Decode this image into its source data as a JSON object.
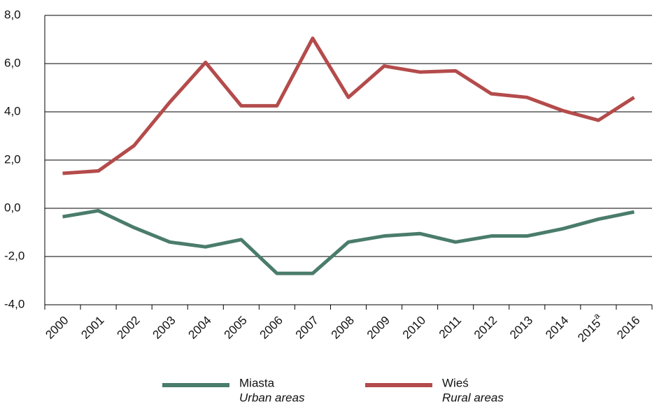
{
  "chart_data": {
    "type": "line",
    "categories": [
      "2000",
      "2001",
      "2002",
      "2003",
      "2004",
      "2005",
      "2006",
      "2007",
      "2008",
      "2009",
      "2010",
      "2011",
      "2012",
      "2013",
      "2014",
      {
        "label": "2015",
        "superscript": "a"
      },
      "2016"
    ],
    "series": [
      {
        "name": "Miasta",
        "name_en": "Urban areas",
        "color": "#4a7c6b",
        "values": [
          -0.35,
          -0.1,
          -0.8,
          -1.4,
          -1.6,
          -1.3,
          -2.7,
          -2.7,
          -1.4,
          -1.15,
          -1.05,
          -1.4,
          -1.15,
          -1.15,
          -0.85,
          -0.45,
          -0.15
        ]
      },
      {
        "name": "Wieś",
        "name_en": "Rural areas",
        "color": "#b44b4b",
        "values": [
          1.45,
          1.55,
          2.6,
          4.4,
          6.05,
          4.25,
          4.25,
          7.05,
          4.6,
          5.9,
          5.65,
          5.7,
          4.75,
          4.6,
          4.05,
          3.65,
          4.6
        ]
      }
    ],
    "ylim": [
      -4,
      8
    ],
    "yticks": [
      {
        "value": -4,
        "label": "-4,0"
      },
      {
        "value": -2,
        "label": "-2,0"
      },
      {
        "value": 0,
        "label": "0,0"
      },
      {
        "value": 2,
        "label": "2,0"
      },
      {
        "value": 4,
        "label": "4,0"
      },
      {
        "value": 6,
        "label": "6,0"
      },
      {
        "value": 8,
        "label": "8,0"
      }
    ],
    "grid": true,
    "legend": "bottom"
  }
}
